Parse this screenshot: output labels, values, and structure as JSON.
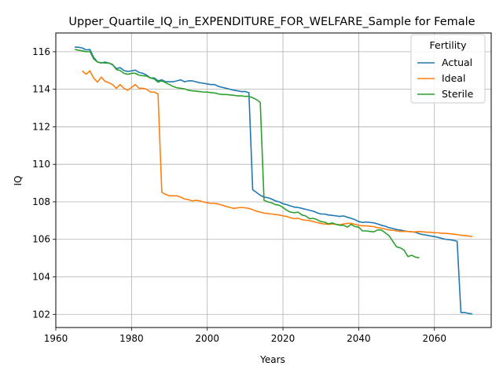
{
  "chart_data": {
    "type": "line",
    "title": "Upper_Quartile_IQ_in_EXPENDITURE_FOR_WELFARE_Sample for Female",
    "xlabel": "Years",
    "ylabel": "IQ",
    "xlim": [
      1960,
      2075
    ],
    "ylim": [
      101.3,
      117.0
    ],
    "xticks": [
      1960,
      1980,
      2000,
      2020,
      2040,
      2060
    ],
    "yticks": [
      102,
      104,
      106,
      108,
      110,
      112,
      114,
      116
    ],
    "grid": true,
    "legend": {
      "title": "Fertility",
      "position": "top-right"
    },
    "series": [
      {
        "name": "Actual",
        "color": "#1f77b4",
        "points": [
          [
            1965,
            116.25
          ],
          [
            1966,
            116.24
          ],
          [
            1967,
            116.2
          ],
          [
            1968,
            116.1
          ],
          [
            1969,
            116.12
          ],
          [
            1970,
            115.7
          ],
          [
            1971,
            115.45
          ],
          [
            1972,
            115.4
          ],
          [
            1973,
            115.45
          ],
          [
            1974,
            115.4
          ],
          [
            1975,
            115.3
          ],
          [
            1976,
            115.1
          ],
          [
            1977,
            115.15
          ],
          [
            1978,
            115.0
          ],
          [
            1979,
            114.95
          ],
          [
            1980,
            114.98
          ],
          [
            1981,
            115.02
          ],
          [
            1982,
            114.9
          ],
          [
            1983,
            114.85
          ],
          [
            1984,
            114.75
          ],
          [
            1985,
            114.6
          ],
          [
            1986,
            114.6
          ],
          [
            1987,
            114.45
          ],
          [
            1988,
            114.5
          ],
          [
            1989,
            114.4
          ],
          [
            1990,
            114.4
          ],
          [
            1991,
            114.4
          ],
          [
            1992,
            114.45
          ],
          [
            1993,
            114.5
          ],
          [
            1994,
            114.4
          ],
          [
            1995,
            114.45
          ],
          [
            1996,
            114.45
          ],
          [
            1997,
            114.4
          ],
          [
            1998,
            114.35
          ],
          [
            1999,
            114.32
          ],
          [
            2000,
            114.28
          ],
          [
            2001,
            114.25
          ],
          [
            2002,
            114.25
          ],
          [
            2003,
            114.15
          ],
          [
            2004,
            114.1
          ],
          [
            2005,
            114.05
          ],
          [
            2006,
            114.0
          ],
          [
            2007,
            113.95
          ],
          [
            2008,
            113.92
          ],
          [
            2009,
            113.88
          ],
          [
            2010,
            113.88
          ],
          [
            2011,
            113.82
          ],
          [
            2012,
            108.65
          ],
          [
            2013,
            108.5
          ],
          [
            2014,
            108.35
          ],
          [
            2015,
            108.25
          ],
          [
            2016,
            108.22
          ],
          [
            2017,
            108.15
          ],
          [
            2018,
            108.05
          ],
          [
            2019,
            108.0
          ],
          [
            2020,
            107.9
          ],
          [
            2021,
            107.85
          ],
          [
            2022,
            107.78
          ],
          [
            2023,
            107.72
          ],
          [
            2024,
            107.7
          ],
          [
            2025,
            107.65
          ],
          [
            2026,
            107.6
          ],
          [
            2027,
            107.55
          ],
          [
            2028,
            107.5
          ],
          [
            2029,
            107.42
          ],
          [
            2030,
            107.35
          ],
          [
            2031,
            107.35
          ],
          [
            2032,
            107.3
          ],
          [
            2033,
            107.28
          ],
          [
            2034,
            107.25
          ],
          [
            2035,
            107.22
          ],
          [
            2036,
            107.25
          ],
          [
            2037,
            107.18
          ],
          [
            2038,
            107.12
          ],
          [
            2039,
            107.05
          ],
          [
            2040,
            106.95
          ],
          [
            2041,
            106.9
          ],
          [
            2042,
            106.92
          ],
          [
            2043,
            106.9
          ],
          [
            2044,
            106.88
          ],
          [
            2045,
            106.82
          ],
          [
            2046,
            106.75
          ],
          [
            2047,
            106.7
          ],
          [
            2048,
            106.62
          ],
          [
            2049,
            106.58
          ],
          [
            2050,
            106.52
          ],
          [
            2051,
            106.5
          ],
          [
            2052,
            106.45
          ],
          [
            2053,
            106.42
          ],
          [
            2054,
            106.4
          ],
          [
            2055,
            106.38
          ],
          [
            2056,
            106.3
          ],
          [
            2057,
            106.25
          ],
          [
            2058,
            106.22
          ],
          [
            2059,
            106.18
          ],
          [
            2060,
            106.15
          ],
          [
            2061,
            106.1
          ],
          [
            2062,
            106.05
          ],
          [
            2063,
            106.0
          ],
          [
            2064,
            105.98
          ],
          [
            2065,
            105.95
          ],
          [
            2066,
            105.9
          ],
          [
            2067,
            102.1
          ],
          [
            2068,
            102.1
          ],
          [
            2069,
            102.05
          ],
          [
            2070,
            102.02
          ]
        ]
      },
      {
        "name": "Ideal",
        "color": "#ff7f0e",
        "points": [
          [
            1967,
            114.98
          ],
          [
            1968,
            114.8
          ],
          [
            1969,
            114.98
          ],
          [
            1970,
            114.6
          ],
          [
            1971,
            114.38
          ],
          [
            1972,
            114.65
          ],
          [
            1973,
            114.42
          ],
          [
            1974,
            114.35
          ],
          [
            1975,
            114.25
          ],
          [
            1976,
            114.05
          ],
          [
            1977,
            114.25
          ],
          [
            1978,
            114.05
          ],
          [
            1979,
            113.95
          ],
          [
            1980,
            114.1
          ],
          [
            1981,
            114.25
          ],
          [
            1982,
            114.05
          ],
          [
            1983,
            114.05
          ],
          [
            1984,
            114.0
          ],
          [
            1985,
            113.85
          ],
          [
            1986,
            113.85
          ],
          [
            1987,
            113.75
          ],
          [
            1988,
            108.5
          ],
          [
            1989,
            108.4
          ],
          [
            1990,
            108.32
          ],
          [
            1991,
            108.32
          ],
          [
            1992,
            108.32
          ],
          [
            1993,
            108.25
          ],
          [
            1994,
            108.15
          ],
          [
            1995,
            108.12
          ],
          [
            1996,
            108.05
          ],
          [
            1997,
            108.08
          ],
          [
            1998,
            108.05
          ],
          [
            1999,
            108.0
          ],
          [
            2000,
            107.95
          ],
          [
            2001,
            107.92
          ],
          [
            2002,
            107.92
          ],
          [
            2003,
            107.88
          ],
          [
            2004,
            107.82
          ],
          [
            2005,
            107.75
          ],
          [
            2006,
            107.7
          ],
          [
            2007,
            107.65
          ],
          [
            2008,
            107.68
          ],
          [
            2009,
            107.7
          ],
          [
            2010,
            107.68
          ],
          [
            2011,
            107.65
          ],
          [
            2012,
            107.58
          ],
          [
            2013,
            107.5
          ],
          [
            2014,
            107.45
          ],
          [
            2015,
            107.4
          ],
          [
            2016,
            107.38
          ],
          [
            2017,
            107.35
          ],
          [
            2018,
            107.32
          ],
          [
            2019,
            107.3
          ],
          [
            2020,
            107.25
          ],
          [
            2021,
            107.22
          ],
          [
            2022,
            107.15
          ],
          [
            2023,
            107.1
          ],
          [
            2024,
            107.12
          ],
          [
            2025,
            107.05
          ],
          [
            2026,
            107.02
          ],
          [
            2027,
            107.0
          ],
          [
            2028,
            106.95
          ],
          [
            2029,
            106.9
          ],
          [
            2030,
            106.85
          ],
          [
            2031,
            106.82
          ],
          [
            2032,
            106.8
          ],
          [
            2033,
            106.82
          ],
          [
            2034,
            106.8
          ],
          [
            2035,
            106.78
          ],
          [
            2036,
            106.82
          ],
          [
            2037,
            106.85
          ],
          [
            2038,
            106.85
          ],
          [
            2039,
            106.8
          ],
          [
            2040,
            106.75
          ],
          [
            2041,
            106.72
          ],
          [
            2042,
            106.72
          ],
          [
            2043,
            106.7
          ],
          [
            2044,
            106.68
          ],
          [
            2045,
            106.62
          ],
          [
            2046,
            106.6
          ],
          [
            2047,
            106.55
          ],
          [
            2048,
            106.5
          ],
          [
            2049,
            106.48
          ],
          [
            2050,
            106.45
          ],
          [
            2051,
            106.42
          ],
          [
            2052,
            106.42
          ],
          [
            2053,
            106.42
          ],
          [
            2054,
            106.4
          ],
          [
            2055,
            106.4
          ],
          [
            2056,
            106.42
          ],
          [
            2057,
            106.4
          ],
          [
            2058,
            106.38
          ],
          [
            2059,
            106.38
          ],
          [
            2060,
            106.35
          ],
          [
            2061,
            106.35
          ],
          [
            2062,
            106.32
          ],
          [
            2063,
            106.32
          ],
          [
            2064,
            106.3
          ],
          [
            2065,
            106.28
          ],
          [
            2066,
            106.25
          ],
          [
            2067,
            106.22
          ],
          [
            2068,
            106.2
          ],
          [
            2069,
            106.18
          ],
          [
            2070,
            106.15
          ]
        ]
      },
      {
        "name": "Sterile",
        "color": "#2ca02c",
        "points": [
          [
            1965,
            116.12
          ],
          [
            1966,
            116.08
          ],
          [
            1967,
            116.05
          ],
          [
            1968,
            116.0
          ],
          [
            1969,
            116.02
          ],
          [
            1970,
            115.62
          ],
          [
            1971,
            115.45
          ],
          [
            1972,
            115.42
          ],
          [
            1973,
            115.4
          ],
          [
            1974,
            115.4
          ],
          [
            1975,
            115.32
          ],
          [
            1976,
            115.05
          ],
          [
            1977,
            115.0
          ],
          [
            1978,
            114.85
          ],
          [
            1979,
            114.8
          ],
          [
            1980,
            114.85
          ],
          [
            1981,
            114.85
          ],
          [
            1982,
            114.75
          ],
          [
            1983,
            114.72
          ],
          [
            1984,
            114.7
          ],
          [
            1985,
            114.6
          ],
          [
            1986,
            114.55
          ],
          [
            1987,
            114.38
          ],
          [
            1988,
            114.45
          ],
          [
            1989,
            114.35
          ],
          [
            1990,
            114.25
          ],
          [
            1991,
            114.15
          ],
          [
            1992,
            114.08
          ],
          [
            1993,
            114.05
          ],
          [
            1994,
            114.02
          ],
          [
            1995,
            113.95
          ],
          [
            1996,
            113.92
          ],
          [
            1997,
            113.9
          ],
          [
            1998,
            113.88
          ],
          [
            1999,
            113.85
          ],
          [
            2000,
            113.85
          ],
          [
            2001,
            113.82
          ],
          [
            2002,
            113.8
          ],
          [
            2003,
            113.75
          ],
          [
            2004,
            113.72
          ],
          [
            2005,
            113.72
          ],
          [
            2006,
            113.7
          ],
          [
            2007,
            113.68
          ],
          [
            2008,
            113.65
          ],
          [
            2009,
            113.65
          ],
          [
            2010,
            113.62
          ],
          [
            2011,
            113.62
          ],
          [
            2012,
            113.55
          ],
          [
            2013,
            113.45
          ],
          [
            2014,
            113.3
          ],
          [
            2015,
            108.08
          ],
          [
            2016,
            108.0
          ],
          [
            2017,
            107.95
          ],
          [
            2018,
            107.85
          ],
          [
            2019,
            107.82
          ],
          [
            2020,
            107.7
          ],
          [
            2021,
            107.55
          ],
          [
            2022,
            107.45
          ],
          [
            2023,
            107.42
          ],
          [
            2024,
            107.45
          ],
          [
            2025,
            107.3
          ],
          [
            2026,
            107.25
          ],
          [
            2027,
            107.1
          ],
          [
            2028,
            107.12
          ],
          [
            2029,
            107.05
          ],
          [
            2030,
            106.95
          ],
          [
            2031,
            106.92
          ],
          [
            2032,
            106.82
          ],
          [
            2033,
            106.88
          ],
          [
            2034,
            106.8
          ],
          [
            2035,
            106.75
          ],
          [
            2036,
            106.75
          ],
          [
            2037,
            106.65
          ],
          [
            2038,
            106.8
          ],
          [
            2039,
            106.68
          ],
          [
            2040,
            106.65
          ],
          [
            2041,
            106.45
          ],
          [
            2042,
            106.45
          ],
          [
            2043,
            106.42
          ],
          [
            2044,
            106.4
          ],
          [
            2045,
            106.5
          ],
          [
            2046,
            106.5
          ],
          [
            2047,
            106.35
          ],
          [
            2048,
            106.2
          ],
          [
            2049,
            105.9
          ],
          [
            2050,
            105.6
          ],
          [
            2051,
            105.55
          ],
          [
            2052,
            105.42
          ],
          [
            2053,
            105.08
          ],
          [
            2054,
            105.15
          ],
          [
            2055,
            105.05
          ],
          [
            2056,
            105.02
          ]
        ]
      }
    ]
  }
}
